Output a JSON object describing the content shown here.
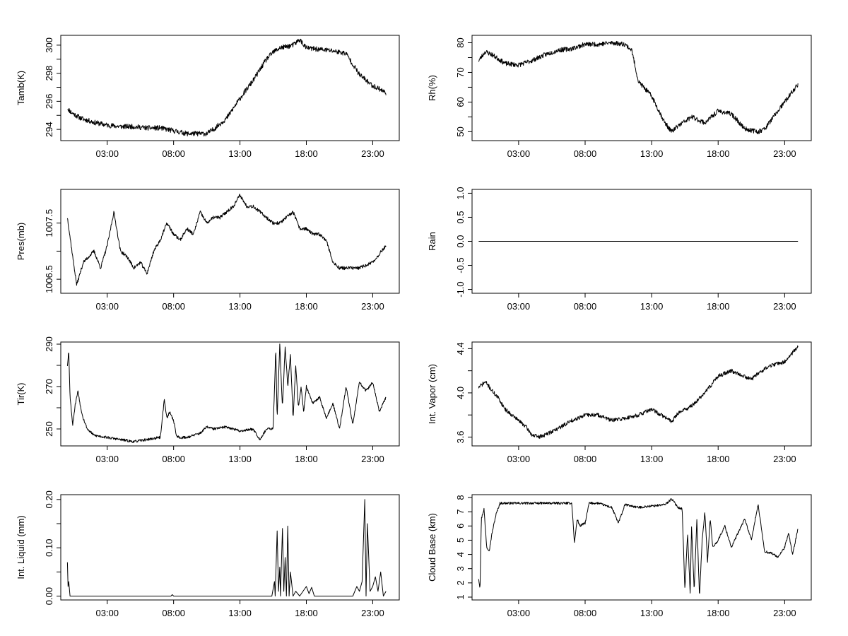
{
  "figure": {
    "background": "#ffffff",
    "line_color": "#000000"
  },
  "chart_data": [
    {
      "id": "tamb",
      "type": "line",
      "ylabel": "Tamb(K)",
      "xticks": [
        "03:00",
        "08:00",
        "13:00",
        "18:00",
        "23:00"
      ],
      "xtick_hours": [
        3,
        8,
        13,
        18,
        23
      ],
      "xlim": [
        -0.5,
        25
      ],
      "ylim": [
        293.2,
        300.7
      ],
      "yticks": [
        294,
        296,
        298,
        300
      ],
      "yminor": [
        295,
        297,
        299
      ],
      "noise": 0.18,
      "seed": 11,
      "series": [
        {
          "name": "Tamb",
          "x": [
            0.0,
            0.3,
            1,
            2,
            3,
            4,
            5,
            6,
            7,
            8,
            9,
            10,
            10.5,
            11,
            12,
            13,
            14,
            15,
            15.5,
            16,
            17,
            17.5,
            18,
            19,
            20,
            21,
            22,
            23,
            23.5,
            24
          ],
          "y": [
            295.5,
            295.2,
            294.8,
            294.5,
            294.3,
            294.2,
            294.2,
            294.1,
            294.1,
            293.9,
            293.7,
            293.7,
            293.7,
            294.0,
            294.8,
            296.2,
            297.5,
            299.0,
            299.5,
            299.8,
            300.0,
            300.4,
            299.8,
            299.7,
            299.6,
            299.4,
            297.9,
            297.1,
            296.9,
            296.6
          ]
        }
      ]
    },
    {
      "id": "rh",
      "type": "line",
      "ylabel": "Rh(%)",
      "xticks": [
        "03:00",
        "08:00",
        "13:00",
        "18:00",
        "23:00"
      ],
      "xtick_hours": [
        3,
        8,
        13,
        18,
        23
      ],
      "xlim": [
        -0.5,
        25
      ],
      "ylim": [
        47,
        82.5
      ],
      "yticks": [
        50,
        60,
        70,
        80
      ],
      "yminor": [
        55,
        65,
        75
      ],
      "noise": 0.8,
      "seed": 23,
      "series": [
        {
          "name": "Rh",
          "x": [
            0.0,
            0.5,
            1,
            2,
            3,
            4,
            5,
            6,
            7,
            8,
            9,
            10,
            11,
            11.5,
            12,
            13,
            14,
            14.5,
            15,
            16,
            17,
            18,
            19,
            20,
            21,
            21.5,
            22,
            23,
            24
          ],
          "y": [
            74,
            77,
            76,
            73,
            72.5,
            74,
            76,
            77.5,
            78,
            79.5,
            79.5,
            80,
            79.5,
            77.5,
            67,
            62,
            53,
            50,
            52,
            55,
            53,
            57,
            56,
            51,
            50,
            51,
            54,
            60,
            66
          ]
        }
      ]
    },
    {
      "id": "pres",
      "type": "line",
      "ylabel": "Pres(mb)",
      "xticks": [
        "03:00",
        "08:00",
        "13:00",
        "18:00",
        "23:00"
      ],
      "xtick_hours": [
        3,
        8,
        13,
        18,
        23
      ],
      "xlim": [
        -0.5,
        25
      ],
      "ylim": [
        1006.25,
        1008.1
      ],
      "yticks": [
        1006.5,
        1007.5
      ],
      "yticklabels": [
        "1006.5",
        "1007.5"
      ],
      "yminor": [
        1007.0
      ],
      "noise": 0.03,
      "seed": 37,
      "series": [
        {
          "name": "Pres",
          "x": [
            0.0,
            0.4,
            0.7,
            1.2,
            2.0,
            2.5,
            3.0,
            3.5,
            4.0,
            4.5,
            5.0,
            5.5,
            6.0,
            6.5,
            7.0,
            7.5,
            8.0,
            8.5,
            9.0,
            9.5,
            10.0,
            10.5,
            11.0,
            11.5,
            12.0,
            12.5,
            13.0,
            13.5,
            14.0,
            14.5,
            15.0,
            15.5,
            16.0,
            16.5,
            17.0,
            17.5,
            18.0,
            18.5,
            19.0,
            19.5,
            20.0,
            20.5,
            21.0,
            22.0,
            23.0,
            24.0
          ],
          "y": [
            1007.6,
            1006.9,
            1006.4,
            1006.8,
            1007.0,
            1006.7,
            1007.1,
            1007.7,
            1007.0,
            1006.9,
            1006.7,
            1006.8,
            1006.6,
            1007.0,
            1007.2,
            1007.5,
            1007.3,
            1007.2,
            1007.4,
            1007.3,
            1007.7,
            1007.5,
            1007.6,
            1007.6,
            1007.7,
            1007.8,
            1008.0,
            1007.8,
            1007.8,
            1007.7,
            1007.6,
            1007.5,
            1007.5,
            1007.6,
            1007.7,
            1007.4,
            1007.4,
            1007.3,
            1007.3,
            1007.2,
            1006.8,
            1006.7,
            1006.7,
            1006.7,
            1006.8,
            1007.1
          ]
        }
      ]
    },
    {
      "id": "rain",
      "type": "line",
      "ylabel": "Rain",
      "xticks": [
        "03:00",
        "08:00",
        "13:00",
        "18:00",
        "23:00"
      ],
      "xtick_hours": [
        3,
        8,
        13,
        18,
        23
      ],
      "xlim": [
        -0.5,
        25
      ],
      "ylim": [
        -1.08,
        1.08
      ],
      "yticks": [
        -1.0,
        -0.5,
        0.0,
        0.5,
        1.0
      ],
      "yticklabels": [
        "-1.0",
        "-0.5",
        "0.0",
        "0.5",
        "1.0"
      ],
      "yminor": [],
      "noise": 0,
      "seed": 1,
      "series": [
        {
          "name": "Rain",
          "x": [
            0,
            24
          ],
          "y": [
            0,
            0
          ]
        }
      ]
    },
    {
      "id": "tir",
      "type": "line",
      "ylabel": "Tir(K)",
      "xticks": [
        "03:00",
        "08:00",
        "13:00",
        "18:00",
        "23:00"
      ],
      "xtick_hours": [
        3,
        8,
        13,
        18,
        23
      ],
      "xlim": [
        -0.5,
        25
      ],
      "ylim": [
        242,
        291
      ],
      "yticks": [
        250,
        270,
        290
      ],
      "yminor": [
        260,
        280
      ],
      "noise": 0.6,
      "seed": 53,
      "series": [
        {
          "name": "Tir",
          "x": [
            0.0,
            0.1,
            0.2,
            0.4,
            0.6,
            0.8,
            1.0,
            1.2,
            1.5,
            2.0,
            3.0,
            4.0,
            5.0,
            6.0,
            7.0,
            7.3,
            7.5,
            7.7,
            8.0,
            8.2,
            8.4,
            9.0,
            10.0,
            10.5,
            11.0,
            12.0,
            13.0,
            14.0,
            14.5,
            15.0,
            15.5,
            15.7,
            15.8,
            16.0,
            16.2,
            16.4,
            16.6,
            16.8,
            17.0,
            17.2,
            17.4,
            17.6,
            17.8,
            18.0,
            18.5,
            19.0,
            19.5,
            20.0,
            20.5,
            21.0,
            21.5,
            22.0,
            22.5,
            23.0,
            23.5,
            24.0
          ],
          "y": [
            280,
            287,
            265,
            252,
            262,
            268,
            260,
            255,
            250,
            247,
            246,
            245,
            244,
            245,
            246,
            264,
            255,
            258,
            254,
            247,
            246,
            246,
            248,
            251,
            250,
            251,
            249,
            250,
            245,
            250,
            250,
            288,
            255,
            290,
            260,
            289,
            270,
            285,
            255,
            280,
            260,
            270,
            258,
            270,
            262,
            265,
            255,
            262,
            250,
            270,
            252,
            272,
            268,
            272,
            258,
            265
          ]
        }
      ]
    },
    {
      "id": "vapor",
      "type": "line",
      "ylabel": "Int. Vapor (cm)",
      "xticks": [
        "03:00",
        "08:00",
        "13:00",
        "18:00",
        "23:00"
      ],
      "xtick_hours": [
        3,
        8,
        13,
        18,
        23
      ],
      "xlim": [
        -0.5,
        25
      ],
      "ylim": [
        3.52,
        4.46
      ],
      "yticks": [
        3.6,
        4.0,
        4.4
      ],
      "yticklabels": [
        "3.6",
        "4.0",
        "4.4"
      ],
      "yminor": [
        3.8,
        4.2
      ],
      "noise": 0.018,
      "seed": 71,
      "series": [
        {
          "name": "IntVapor",
          "x": [
            0.0,
            0.5,
            1,
            1.5,
            2,
            3,
            3.5,
            4,
            4.5,
            5,
            6,
            7,
            8,
            9,
            10,
            11,
            12,
            13,
            14,
            14.5,
            15,
            16,
            17,
            18,
            19,
            20,
            20.5,
            21,
            22,
            23,
            24
          ],
          "y": [
            4.05,
            4.1,
            4.02,
            3.95,
            3.85,
            3.75,
            3.7,
            3.62,
            3.6,
            3.62,
            3.68,
            3.75,
            3.8,
            3.8,
            3.75,
            3.77,
            3.8,
            3.85,
            3.78,
            3.74,
            3.82,
            3.88,
            4.0,
            4.15,
            4.2,
            4.15,
            4.12,
            4.18,
            4.25,
            4.28,
            4.42
          ]
        }
      ]
    },
    {
      "id": "liquid",
      "type": "line",
      "ylabel": "Int. Liquid (mm)",
      "xticks": [
        "03:00",
        "08:00",
        "13:00",
        "18:00",
        "23:00"
      ],
      "xtick_hours": [
        3,
        8,
        13,
        18,
        23
      ],
      "xlim": [
        -0.5,
        25
      ],
      "ylim": [
        -0.008,
        0.21
      ],
      "yticks": [
        0.0,
        0.1,
        0.2
      ],
      "yticklabels": [
        "0.00",
        "0.10",
        "0.20"
      ],
      "yminor": [
        0.05,
        0.15
      ],
      "noise": 0,
      "seed": 89,
      "series": [
        {
          "name": "IntLiquid",
          "x": [
            0.0,
            0.05,
            0.1,
            0.2,
            0.3,
            0.4,
            7.8,
            7.9,
            8.0,
            15.4,
            15.6,
            15.65,
            15.8,
            15.9,
            16.0,
            16.05,
            16.2,
            16.3,
            16.4,
            16.5,
            16.6,
            16.7,
            16.8,
            17.0,
            17.2,
            17.5,
            18.0,
            18.2,
            18.4,
            18.6,
            19.0,
            21.5,
            21.8,
            22.0,
            22.2,
            22.4,
            22.5,
            22.6,
            22.8,
            23.0,
            23.2,
            23.4,
            23.6,
            23.8,
            24.0
          ],
          "y": [
            0.07,
            0.02,
            0.03,
            0.0,
            0.0,
            0.0,
            0.0,
            0.003,
            0.0,
            0.0,
            0.03,
            0.0,
            0.135,
            0.01,
            0.06,
            0.0,
            0.14,
            0.01,
            0.08,
            0.0,
            0.145,
            0.0,
            0.05,
            0.0,
            0.01,
            0.0,
            0.02,
            0.005,
            0.018,
            0.0,
            0.0,
            0.0,
            0.02,
            0.01,
            0.03,
            0.2,
            0.0,
            0.15,
            0.01,
            0.02,
            0.04,
            0.01,
            0.05,
            0.0,
            0.01
          ]
        }
      ]
    },
    {
      "id": "cloud",
      "type": "line",
      "ylabel": "Cloud Base (km)",
      "xticks": [
        "03:00",
        "08:00",
        "13:00",
        "18:00",
        "23:00"
      ],
      "xtick_hours": [
        3,
        8,
        13,
        18,
        23
      ],
      "xlim": [
        -0.5,
        25
      ],
      "ylim": [
        0.8,
        8.2
      ],
      "yticks": [
        1,
        2,
        3,
        4,
        5,
        6,
        7,
        8
      ],
      "yminor": [],
      "noise": 0.08,
      "seed": 97,
      "series": [
        {
          "name": "CloudBase",
          "x": [
            0.0,
            0.1,
            0.2,
            0.4,
            0.6,
            0.8,
            1.0,
            1.3,
            1.6,
            2.0,
            3.0,
            4.0,
            5.0,
            6.0,
            7.0,
            7.2,
            7.4,
            7.6,
            8.0,
            8.3,
            9.0,
            10.0,
            10.5,
            11.0,
            12.0,
            13.0,
            14.0,
            14.5,
            15.0,
            15.3,
            15.5,
            15.7,
            15.9,
            16.0,
            16.2,
            16.4,
            16.6,
            16.8,
            17.0,
            17.2,
            17.4,
            17.6,
            18.0,
            18.5,
            19.0,
            19.5,
            20.0,
            20.5,
            21.0,
            21.5,
            22.0,
            22.5,
            23.0,
            23.3,
            23.6,
            24.0
          ],
          "y": [
            2.3,
            1.6,
            6.5,
            7.2,
            4.5,
            4.3,
            5.5,
            6.8,
            7.6,
            7.6,
            7.6,
            7.6,
            7.6,
            7.6,
            7.6,
            4.8,
            6.5,
            6.0,
            6.2,
            7.6,
            7.6,
            7.3,
            6.2,
            7.5,
            7.3,
            7.4,
            7.5,
            7.9,
            7.3,
            7.2,
            1.5,
            5.5,
            1.2,
            6.0,
            1.5,
            6.5,
            1.0,
            5.0,
            7.0,
            3.5,
            6.5,
            4.5,
            5.0,
            6.0,
            4.5,
            5.5,
            6.5,
            5.0,
            7.5,
            4.2,
            4.1,
            3.8,
            4.5,
            5.5,
            4.0,
            5.8
          ]
        }
      ]
    }
  ]
}
